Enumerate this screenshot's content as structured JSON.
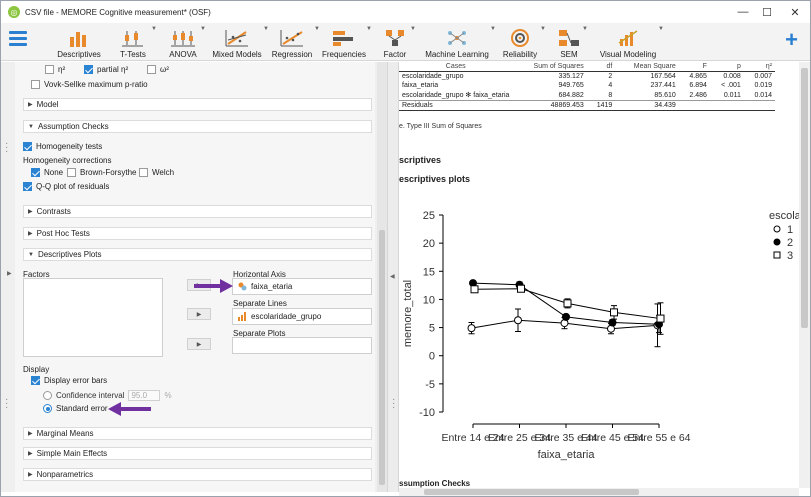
{
  "window": {
    "title": "CSV file - MEMORE Cognitive measurement*   (OSF)",
    "minimize": "—",
    "maximize": "☐",
    "close": "✕"
  },
  "ribbon": {
    "items": [
      {
        "label": "Descriptives",
        "icon": "descriptives-icon"
      },
      {
        "label": "T-Tests",
        "icon": "t-tests-icon"
      },
      {
        "label": "ANOVA",
        "icon": "anova-icon"
      },
      {
        "label": "Mixed Models",
        "icon": "mixed-models-icon"
      },
      {
        "label": "Regression",
        "icon": "regression-icon"
      },
      {
        "label": "Frequencies",
        "icon": "frequencies-icon"
      },
      {
        "label": "Factor",
        "icon": "factor-icon"
      },
      {
        "label": "Machine Learning",
        "icon": "machine-learning-icon"
      },
      {
        "label": "Reliability",
        "icon": "reliability-icon"
      },
      {
        "label": "SEM",
        "icon": "sem-icon"
      },
      {
        "label": "Visual Modeling",
        "icon": "visual-modeling-icon"
      }
    ],
    "plus": "+"
  },
  "options": {
    "effect_sizes": {
      "eta_sq": "η²",
      "partial_eta_sq": "partial η²",
      "omega_sq": "ω²",
      "vovk": "Vovk-Sellke maximum p-ratio"
    },
    "sections": {
      "model": "Model",
      "assumption_checks": "Assumption Checks",
      "contrasts": "Contrasts",
      "post_hoc": "Post Hoc Tests",
      "descriptives_plots": "Descriptives Plots",
      "marginal_means": "Marginal Means",
      "simple_main_effects": "Simple Main Effects",
      "nonparametrics": "Nonparametrics"
    },
    "homogeneity_tests": "Homogeneity tests",
    "homogeneity_corrections": "Homogeneity corrections",
    "corr_none": "None",
    "corr_bf": "Brown-Forsythe",
    "corr_welch": "Welch",
    "qq_plot": "Q-Q plot of residuals",
    "factors_label": "Factors",
    "horizontal_axis_label": "Horizontal Axis",
    "horizontal_axis_value": "faixa_etaria",
    "separate_lines_label": "Separate Lines",
    "separate_lines_value": "escolaridade_grupo",
    "separate_plots_label": "Separate Plots",
    "display_label": "Display",
    "display_error_bars": "Display error bars",
    "confidence_interval": "Confidence interval",
    "ci_value": "95.0",
    "ci_unit": "%",
    "standard_error": "Standard error"
  },
  "results": {
    "table": {
      "headers": [
        "Cases",
        "Sum of Squares",
        "df",
        "Mean Square",
        "F",
        "p",
        "η²"
      ],
      "rows": [
        [
          "escolaridade_grupo",
          "335.127",
          "2",
          "167.564",
          "4.865",
          "0.008",
          "0.007"
        ],
        [
          "faixa_etaria",
          "949.765",
          "4",
          "237.441",
          "6.894",
          "< .001",
          "0.019"
        ],
        [
          "escolaridade_grupo ✻ faixa_etaria",
          "684.882",
          "8",
          "85.610",
          "2.486",
          "0.011",
          "0.014"
        ],
        [
          "Residuals",
          "48869.453",
          "1419",
          "34.439",
          "",
          "",
          ""
        ]
      ],
      "note": "e. Type III Sum of Squares"
    },
    "heading_descriptives": "scriptives",
    "heading_plots": "escriptives plots",
    "heading_bottom": "ssumption Checks"
  },
  "chart_data": {
    "type": "line",
    "xlabel": "faixa_etaria",
    "ylabel": "memore_total",
    "categories": [
      "Entre 14 e 24",
      "Entre 25 e 34",
      "Entre 35 e 44",
      "Entre 45 e 54",
      "Entre 55 e 64"
    ],
    "ylim": [
      -10,
      25
    ],
    "yticks": [
      -10,
      -5,
      0,
      5,
      10,
      15,
      20,
      25
    ],
    "legend_title": "escola",
    "legend_placement": "top-right",
    "series": [
      {
        "name": "1",
        "marker": "circle-open",
        "values": [
          4.9,
          6.3,
          5.8,
          4.8,
          5.4
        ],
        "err": [
          1.0,
          2.0,
          1.0,
          0.9,
          3.8
        ]
      },
      {
        "name": "2",
        "marker": "circle-filled",
        "values": [
          12.9,
          12.6,
          6.9,
          5.9,
          5.6
        ],
        "err": [
          0.3,
          0.5,
          0.4,
          0.5,
          1.5
        ]
      },
      {
        "name": "3",
        "marker": "square-open",
        "values": [
          11.8,
          11.9,
          9.3,
          7.7,
          6.6
        ],
        "err": [
          0.4,
          0.5,
          0.8,
          1.2,
          2.8
        ]
      }
    ]
  }
}
